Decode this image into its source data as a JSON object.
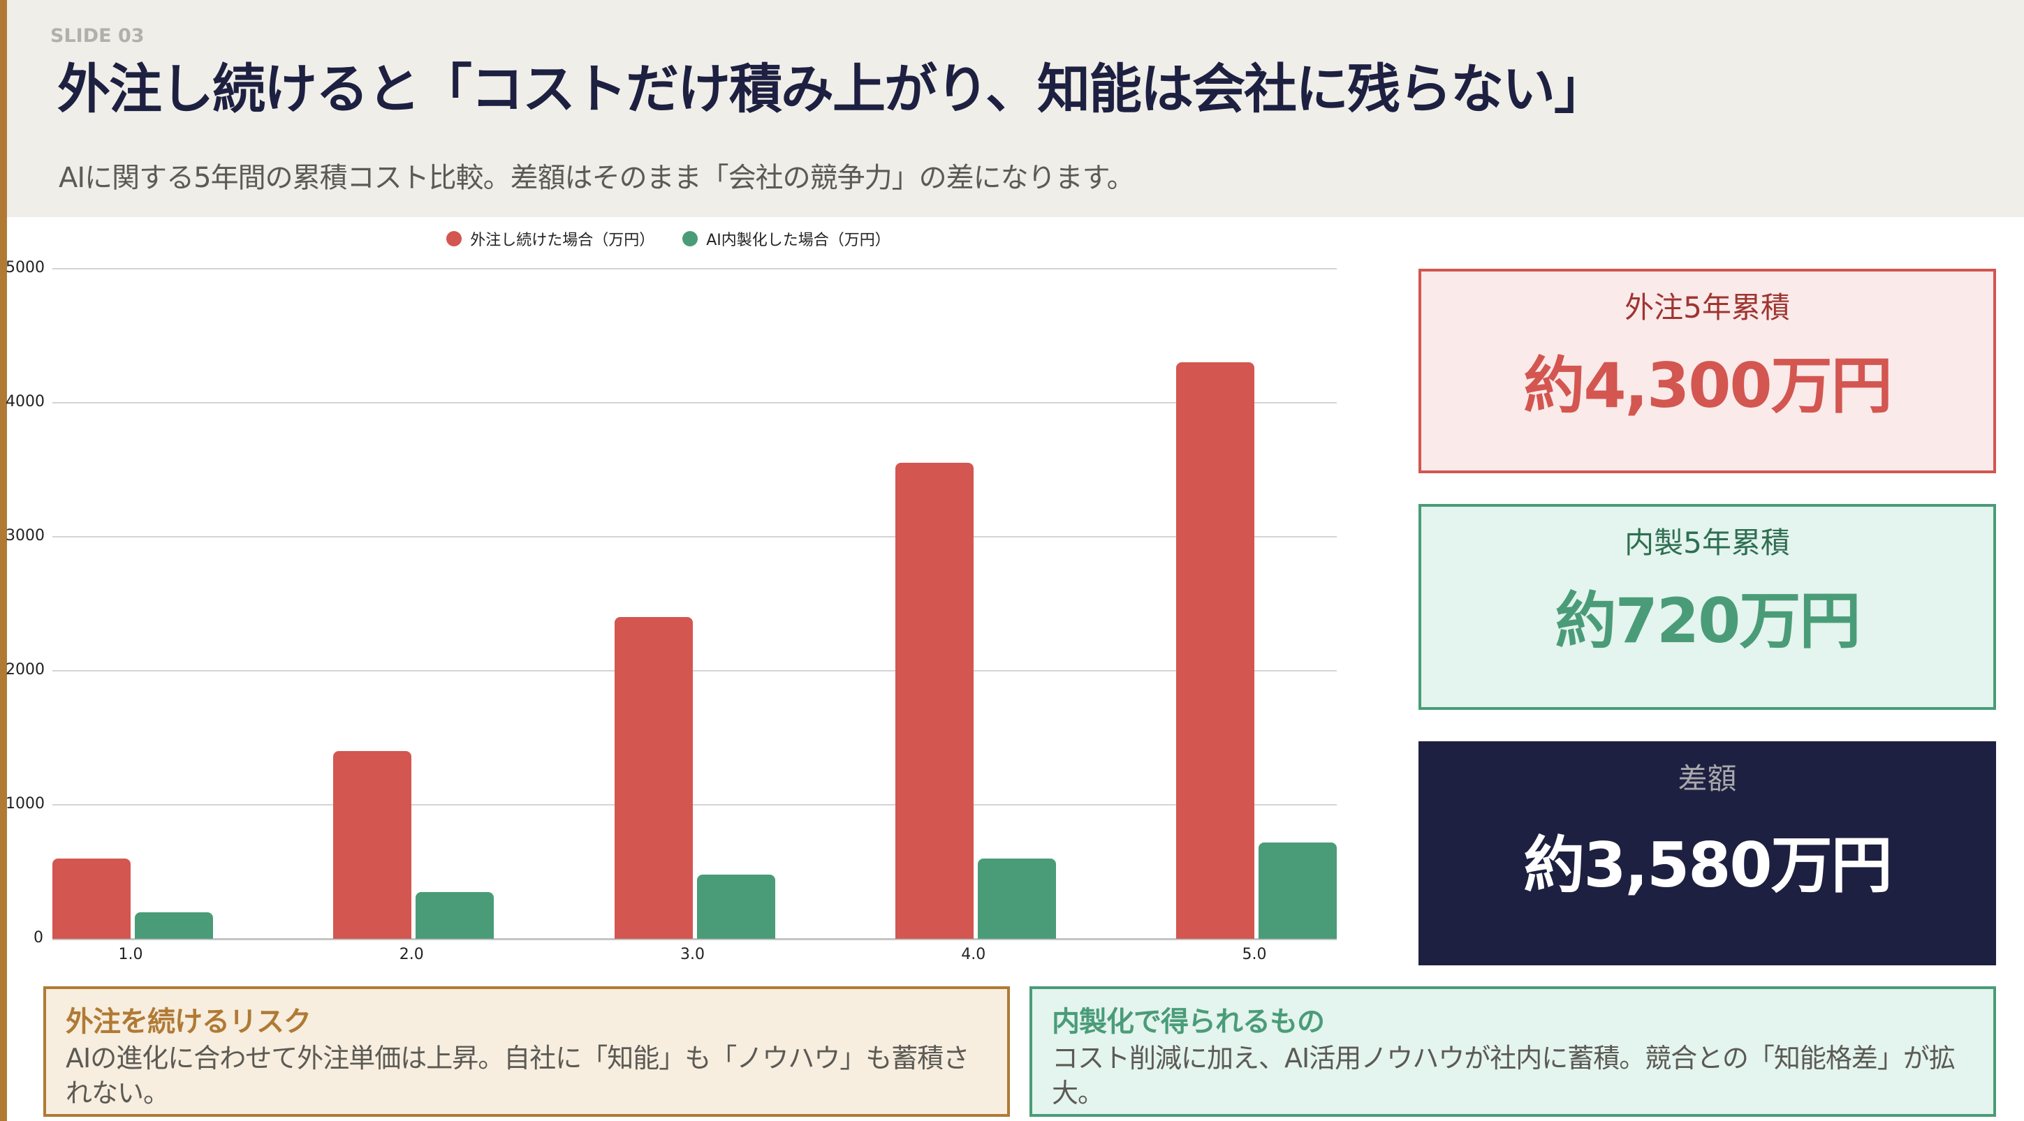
{
  "header": {
    "slide_number": "SLIDE 03",
    "title": "外注し続けると「コストだけ積み上がり、知能は会社に残らない」",
    "subtitle": "AIに関する5年間の累積コスト比較。差額はそのまま「会社の競争力」の差になります。"
  },
  "colors": {
    "accent": "#b07a35",
    "outsource_red": "#d35650",
    "inhouse_green": "#4a9c78",
    "navy": "#1d2040",
    "header_bg": "#f0eee9"
  },
  "chart_data": {
    "type": "bar",
    "title": "",
    "xlabel": "",
    "ylabel": "",
    "categories": [
      "1.0",
      "2.0",
      "3.0",
      "4.0",
      "5.0"
    ],
    "series": [
      {
        "name": "外注し続けた場合（万円）",
        "color": "#d35650",
        "values": [
          600,
          1400,
          2400,
          3550,
          4300
        ]
      },
      {
        "name": "AI内製化した場合（万円）",
        "color": "#4a9c78",
        "values": [
          200,
          350,
          480,
          600,
          720
        ]
      }
    ],
    "ylim": [
      0,
      5000
    ],
    "yticks": [
      "5000",
      "4000",
      "3000",
      "2000",
      "1000",
      "0"
    ],
    "grid": true,
    "legend_position": "top"
  },
  "legend": {
    "items": [
      {
        "label": "外注し続けた場合（万円）"
      },
      {
        "label": "AI内製化した場合（万円）"
      }
    ]
  },
  "stats": {
    "outsource": {
      "label": "外注5年累積",
      "value": "約4,300万円"
    },
    "inhouse": {
      "label": "内製5年累積",
      "value": "約720万円"
    },
    "difference": {
      "label": "差額",
      "value": "約3,580万円"
    }
  },
  "cards": {
    "risk": {
      "title": "外注を続けるリスク",
      "body": "AIの進化に合わせて外注単価は上昇。自社に「知能」も「ノウハウ」も蓄積されない。"
    },
    "gain": {
      "title": "内製化で得られるもの",
      "body": "コスト削減に加え、AI活用ノウハウが社内に蓄積。競合との「知能格差」が拡大。"
    }
  }
}
